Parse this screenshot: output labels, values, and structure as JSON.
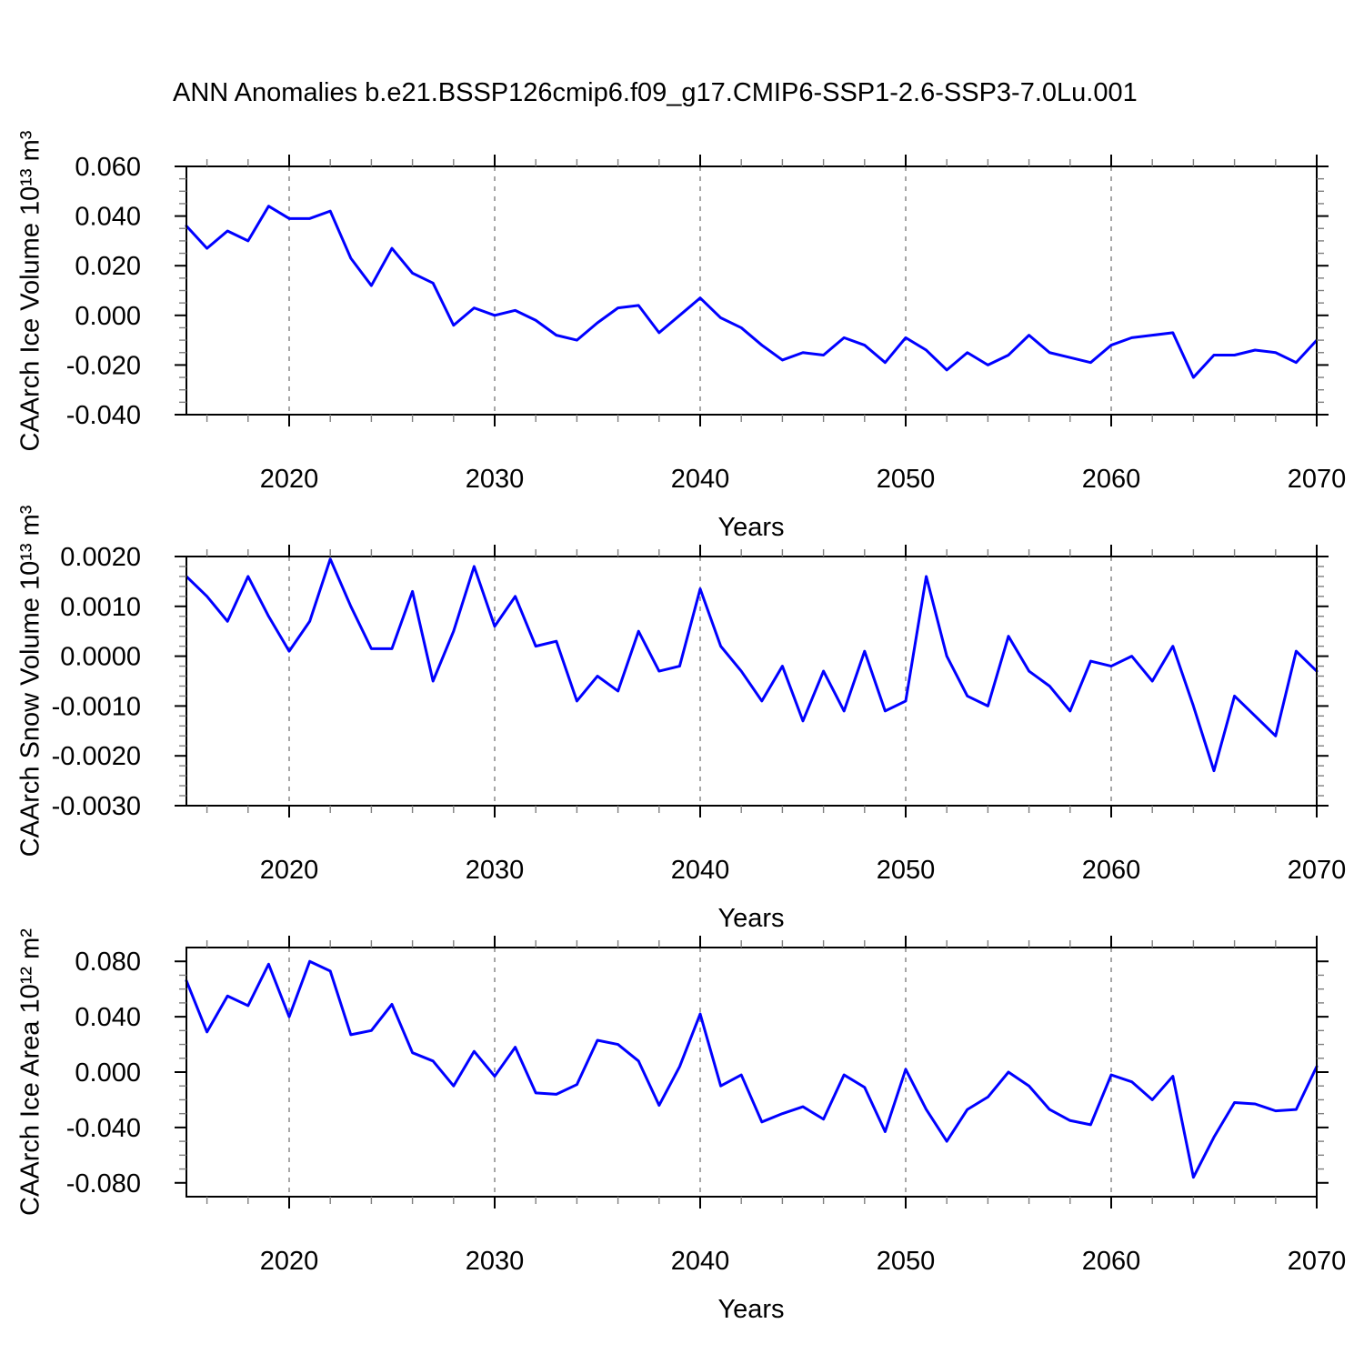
{
  "title": "ANN Anomalies b.e21.BSSP126cmip6.f09_g17.CMIP6-SSP1-2.6-SSP3-7.0Lu.001",
  "colors": {
    "line": "#0000ff",
    "grid": "#909090",
    "axis": "#000000",
    "minor_tick": "#808080"
  },
  "x_axis": {
    "label": "Years",
    "range": [
      2015,
      2070
    ],
    "major_ticks": [
      2020,
      2030,
      2040,
      2050,
      2060,
      2070
    ],
    "minor_step": 2,
    "gridlines": [
      2020,
      2030,
      2040,
      2050,
      2060
    ]
  },
  "years": [
    2015,
    2016,
    2017,
    2018,
    2019,
    2020,
    2021,
    2022,
    2023,
    2024,
    2025,
    2026,
    2027,
    2028,
    2029,
    2030,
    2031,
    2032,
    2033,
    2034,
    2035,
    2036,
    2037,
    2038,
    2039,
    2040,
    2041,
    2042,
    2043,
    2044,
    2045,
    2046,
    2047,
    2048,
    2049,
    2050,
    2051,
    2052,
    2053,
    2054,
    2055,
    2056,
    2057,
    2058,
    2059,
    2060,
    2061,
    2062,
    2063,
    2064,
    2065,
    2066,
    2067,
    2068,
    2069,
    2070
  ],
  "chart_data": [
    {
      "name": "caarch-ice-volume",
      "type": "line",
      "ylabel": "CAArch Ice Volume 10¹³ m³",
      "ylim": [
        -0.04,
        0.06
      ],
      "yticks": [
        0.06,
        0.04,
        0.02,
        0.0,
        -0.02,
        -0.04
      ],
      "ytick_labels": [
        "0.060",
        "0.040",
        "0.020",
        "0.000",
        "-0.020",
        "-0.040"
      ],
      "y_minor_step": 0.005,
      "values": [
        0.036,
        0.027,
        0.034,
        0.03,
        0.044,
        0.039,
        0.039,
        0.042,
        0.023,
        0.012,
        0.027,
        0.017,
        0.013,
        -0.004,
        0.003,
        0.0,
        0.002,
        -0.002,
        -0.008,
        -0.01,
        -0.003,
        0.003,
        0.004,
        -0.007,
        0.0,
        0.007,
        -0.001,
        -0.005,
        -0.012,
        -0.018,
        -0.015,
        -0.016,
        -0.009,
        -0.012,
        -0.019,
        -0.009,
        -0.014,
        -0.022,
        -0.015,
        -0.02,
        -0.016,
        -0.008,
        -0.015,
        -0.017,
        -0.019,
        -0.012,
        -0.009,
        -0.008,
        -0.007,
        -0.025,
        -0.016,
        -0.016,
        -0.014,
        -0.015,
        -0.019,
        -0.01
      ]
    },
    {
      "name": "caarch-snow-volume",
      "type": "line",
      "ylabel": "CAArch Snow Volume 10¹³ m³",
      "ylim": [
        -0.003,
        0.002
      ],
      "yticks": [
        0.002,
        0.001,
        0.0,
        -0.001,
        -0.002,
        -0.003
      ],
      "ytick_labels": [
        "0.0020",
        "0.0010",
        "0.0000",
        "-0.0010",
        "-0.0020",
        "-0.0030"
      ],
      "y_minor_step": 0.0002,
      "values": [
        0.0016,
        0.0012,
        0.0007,
        0.0016,
        0.0008,
        0.0001,
        0.0007,
        0.00195,
        0.001,
        0.00015,
        0.00015,
        0.0013,
        -0.0005,
        0.0005,
        0.0018,
        0.0006,
        0.0012,
        0.0002,
        0.0003,
        -0.0009,
        -0.0004,
        -0.0007,
        0.0005,
        -0.0003,
        -0.0002,
        0.00135,
        0.0002,
        -0.0003,
        -0.0009,
        -0.0002,
        -0.0013,
        -0.0003,
        -0.0011,
        0.0001,
        -0.0011,
        -0.0009,
        0.0016,
        0.0,
        -0.0008,
        -0.001,
        0.0004,
        -0.0003,
        -0.0006,
        -0.0011,
        -0.0001,
        -0.0002,
        0.0,
        -0.0005,
        0.0002,
        -0.001,
        -0.0023,
        -0.0008,
        -0.0012,
        -0.0016,
        0.0001,
        -0.0003
      ]
    },
    {
      "name": "caarch-ice-area",
      "type": "line",
      "ylabel": "CAArch Ice Area 10¹² m²",
      "ylim": [
        -0.09,
        0.09
      ],
      "yticks": [
        0.08,
        0.04,
        0.0,
        -0.04,
        -0.08
      ],
      "ytick_labels": [
        "0.080",
        "0.040",
        "0.000",
        "-0.040",
        "-0.080"
      ],
      "y_minor_step": 0.01,
      "values": [
        0.066,
        0.029,
        0.055,
        0.048,
        0.078,
        0.04,
        0.08,
        0.073,
        0.027,
        0.03,
        0.049,
        0.014,
        0.008,
        -0.01,
        0.015,
        -0.003,
        0.018,
        -0.015,
        -0.016,
        -0.009,
        0.023,
        0.02,
        0.008,
        -0.024,
        0.004,
        0.042,
        -0.01,
        -0.002,
        -0.036,
        -0.03,
        -0.025,
        -0.034,
        -0.002,
        -0.011,
        -0.043,
        0.002,
        -0.027,
        -0.05,
        -0.027,
        -0.018,
        0.0,
        -0.01,
        -0.027,
        -0.035,
        -0.038,
        -0.002,
        -0.007,
        -0.02,
        -0.003,
        -0.076,
        -0.047,
        -0.022,
        -0.023,
        -0.028,
        -0.027,
        0.004
      ]
    }
  ]
}
